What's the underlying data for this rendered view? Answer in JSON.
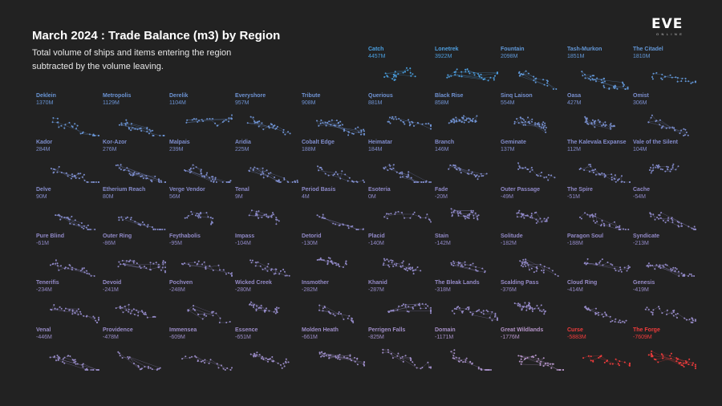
{
  "title": "March 2024 : Trade Balance (m3) by Region",
  "subtitle": "Total volume of ships and items entering the region subtracted by the volume leaving.",
  "logo": {
    "main": "EVE",
    "sub": "ONLINE"
  },
  "colors": {
    "background": "#222222",
    "positive_high": "#4a9fe0",
    "neutral": "#8f89c8",
    "negative": "#b494c8",
    "negative_high": "#ef3c3c"
  },
  "chart_data": {
    "type": "small-multiples",
    "metric": "Trade Balance (m3)",
    "unit": "M",
    "regions": [
      {
        "name": "Catch",
        "label": "4457M",
        "value": 4457
      },
      {
        "name": "Lonetrek",
        "label": "3922M",
        "value": 3922
      },
      {
        "name": "Fountain",
        "label": "2098M",
        "value": 2098
      },
      {
        "name": "Tash-Murkon",
        "label": "1851M",
        "value": 1851
      },
      {
        "name": "The Citadel",
        "label": "1810M",
        "value": 1810
      },
      {
        "name": "Deklein",
        "label": "1370M",
        "value": 1370
      },
      {
        "name": "Metropolis",
        "label": "1129M",
        "value": 1129
      },
      {
        "name": "Derelik",
        "label": "1104M",
        "value": 1104
      },
      {
        "name": "Everyshore",
        "label": "957M",
        "value": 957
      },
      {
        "name": "Tribute",
        "label": "908M",
        "value": 908
      },
      {
        "name": "Querious",
        "label": "881M",
        "value": 881
      },
      {
        "name": "Black Rise",
        "label": "858M",
        "value": 858
      },
      {
        "name": "Sinq Laison",
        "label": "554M",
        "value": 554
      },
      {
        "name": "Oasa",
        "label": "427M",
        "value": 427
      },
      {
        "name": "Omist",
        "label": "306M",
        "value": 306
      },
      {
        "name": "Kador",
        "label": "284M",
        "value": 284
      },
      {
        "name": "Kor-Azor",
        "label": "276M",
        "value": 276
      },
      {
        "name": "Malpais",
        "label": "239M",
        "value": 239
      },
      {
        "name": "Aridia",
        "label": "225M",
        "value": 225
      },
      {
        "name": "Cobalt Edge",
        "label": "188M",
        "value": 188
      },
      {
        "name": "Heimatar",
        "label": "184M",
        "value": 184
      },
      {
        "name": "Branch",
        "label": "146M",
        "value": 146
      },
      {
        "name": "Geminate",
        "label": "137M",
        "value": 137
      },
      {
        "name": "The Kalevala Expanse",
        "label": "112M",
        "value": 112
      },
      {
        "name": "Vale of the Silent",
        "label": "104M",
        "value": 104
      },
      {
        "name": "Delve",
        "label": "90M",
        "value": 90
      },
      {
        "name": "Etherium Reach",
        "label": "80M",
        "value": 80
      },
      {
        "name": "Verge Vendor",
        "label": "56M",
        "value": 56
      },
      {
        "name": "Tenal",
        "label": "9M",
        "value": 9
      },
      {
        "name": "Period Basis",
        "label": "4M",
        "value": 4
      },
      {
        "name": "Esoteria",
        "label": "0M",
        "value": 0
      },
      {
        "name": "Fade",
        "label": "-20M",
        "value": -20
      },
      {
        "name": "Outer Passage",
        "label": "-49M",
        "value": -49
      },
      {
        "name": "The Spire",
        "label": "-51M",
        "value": -51
      },
      {
        "name": "Cache",
        "label": "-54M",
        "value": -54
      },
      {
        "name": "Pure Blind",
        "label": "-61M",
        "value": -61
      },
      {
        "name": "Outer Ring",
        "label": "-86M",
        "value": -86
      },
      {
        "name": "Feythabolis",
        "label": "-95M",
        "value": -95
      },
      {
        "name": "Impass",
        "label": "-104M",
        "value": -104
      },
      {
        "name": "Detorid",
        "label": "-130M",
        "value": -130
      },
      {
        "name": "Placid",
        "label": "-140M",
        "value": -140
      },
      {
        "name": "Stain",
        "label": "-142M",
        "value": -142
      },
      {
        "name": "Solitude",
        "label": "-182M",
        "value": -182
      },
      {
        "name": "Paragon Soul",
        "label": "-188M",
        "value": -188
      },
      {
        "name": "Syndicate",
        "label": "-213M",
        "value": -213
      },
      {
        "name": "Tenerifis",
        "label": "-234M",
        "value": -234
      },
      {
        "name": "Devoid",
        "label": "-241M",
        "value": -241
      },
      {
        "name": "Pochven",
        "label": "-248M",
        "value": -248
      },
      {
        "name": "Wicked Creek",
        "label": "-280M",
        "value": -280
      },
      {
        "name": "Insmother",
        "label": "-282M",
        "value": -282
      },
      {
        "name": "Khanid",
        "label": "-287M",
        "value": -287
      },
      {
        "name": "The Bleak Lands",
        "label": "-318M",
        "value": -318
      },
      {
        "name": "Scalding Pass",
        "label": "-376M",
        "value": -376
      },
      {
        "name": "Cloud Ring",
        "label": "-414M",
        "value": -414
      },
      {
        "name": "Genesis",
        "label": "-419M",
        "value": -419
      },
      {
        "name": "Venal",
        "label": "-446M",
        "value": -446
      },
      {
        "name": "Providence",
        "label": "-478M",
        "value": -478
      },
      {
        "name": "Immensea",
        "label": "-609M",
        "value": -609
      },
      {
        "name": "Essence",
        "label": "-651M",
        "value": -651
      },
      {
        "name": "Molden Heath",
        "label": "-661M",
        "value": -661
      },
      {
        "name": "Perrigen Falls",
        "label": "-825M",
        "value": -825
      },
      {
        "name": "Domain",
        "label": "-1171M",
        "value": -1171
      },
      {
        "name": "Great Wildlands",
        "label": "-1776M",
        "value": -1776
      },
      {
        "name": "Curse",
        "label": "-5883M",
        "value": -5883
      },
      {
        "name": "The Forge",
        "label": "-7609M",
        "value": -7609
      }
    ]
  }
}
